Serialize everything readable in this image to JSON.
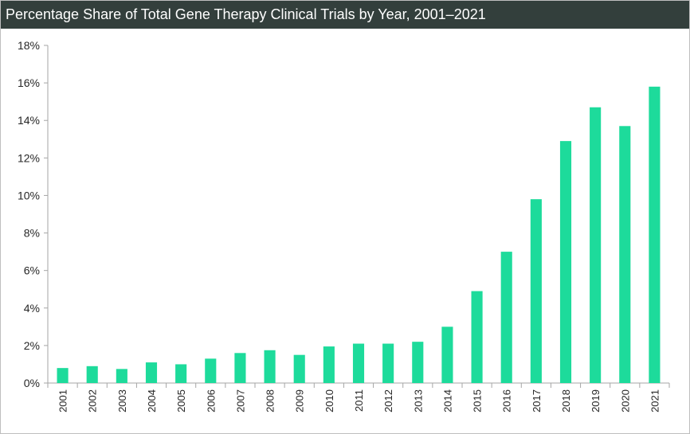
{
  "chart_data": {
    "type": "bar",
    "title": "Percentage Share of Total Gene Therapy Clinical Trials by Year, 2001–2021",
    "xlabel": "",
    "ylabel": "",
    "categories": [
      "2001",
      "2002",
      "2003",
      "2004",
      "2005",
      "2006",
      "2007",
      "2008",
      "2009",
      "2010",
      "2011",
      "2012",
      "2013",
      "2014",
      "2015",
      "2016",
      "2017",
      "2018",
      "2019",
      "2020",
      "2021"
    ],
    "values": [
      0.8,
      0.9,
      0.75,
      1.1,
      1.0,
      1.3,
      1.6,
      1.75,
      1.5,
      1.95,
      2.1,
      2.1,
      2.2,
      3.0,
      4.9,
      7.0,
      9.8,
      12.9,
      14.7,
      13.7,
      15.8
    ],
    "ylim": [
      0,
      18
    ],
    "yticks": [
      "0%",
      "2%",
      "4%",
      "6%",
      "8%",
      "10%",
      "12%",
      "14%",
      "16%",
      "18%"
    ],
    "legend": "none",
    "grid": false
  },
  "colors": {
    "bar": "#1ddb9b",
    "title_bg": "#333f3c",
    "title_text": "#ffffff",
    "axis": "#a6a6a6"
  }
}
